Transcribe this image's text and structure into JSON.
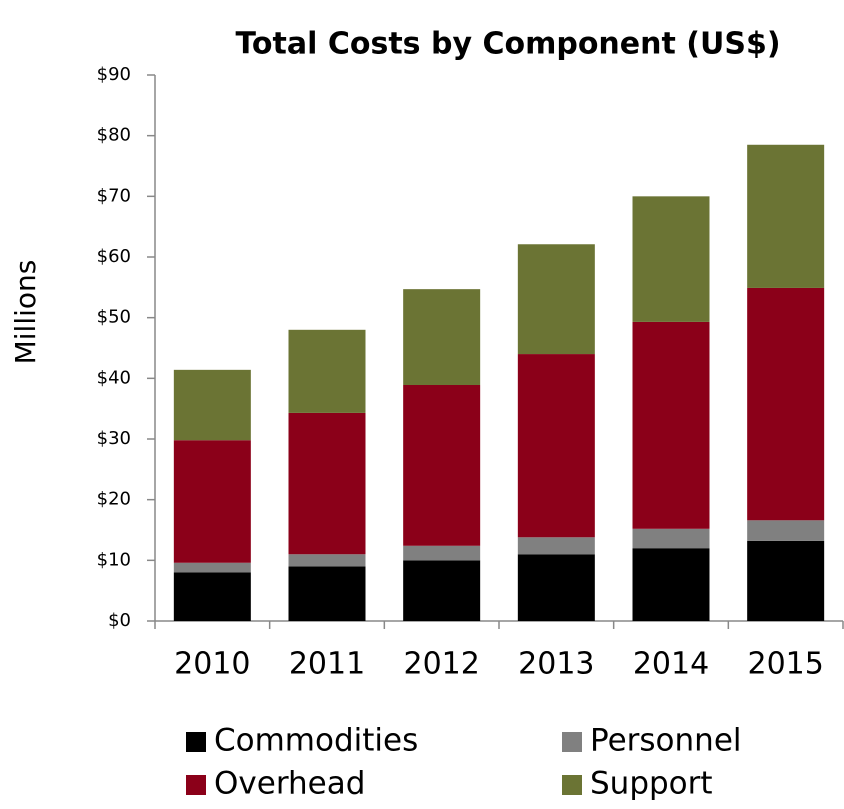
{
  "chart_data": {
    "type": "stacked_bar",
    "title": "Total Costs by Component (US$)",
    "y_label": "Millions",
    "categories": [
      "2010",
      "2011",
      "2012",
      "2013",
      "2014",
      "2015"
    ],
    "series": [
      {
        "name": "Commodities",
        "color": "#000000",
        "values": [
          8,
          9,
          10,
          11,
          12,
          13.2
        ]
      },
      {
        "name": "Personnel",
        "color": "#808080",
        "values": [
          1.6,
          2,
          2.4,
          2.8,
          3.2,
          3.4
        ]
      },
      {
        "name": "Overhead",
        "color": "#8b0019",
        "values": [
          20.2,
          23.3,
          26.5,
          30.2,
          34.1,
          38.3
        ]
      },
      {
        "name": "Support",
        "color": "#6b7434",
        "values": [
          11.6,
          13.7,
          15.8,
          18.1,
          20.7,
          23.6
        ]
      }
    ],
    "ylim": [
      0,
      90
    ],
    "yticks": [
      {
        "value": 0,
        "label": "$0"
      },
      {
        "value": 10,
        "label": "$10"
      },
      {
        "value": 20,
        "label": "$20"
      },
      {
        "value": 30,
        "label": "$30"
      },
      {
        "value": 40,
        "label": "$40"
      },
      {
        "value": 50,
        "label": "$50"
      },
      {
        "value": 60,
        "label": "$60"
      },
      {
        "value": 70,
        "label": "$70"
      },
      {
        "value": 80,
        "label": "$80"
      },
      {
        "value": 90,
        "label": "$90"
      }
    ],
    "legend": "bottom"
  }
}
